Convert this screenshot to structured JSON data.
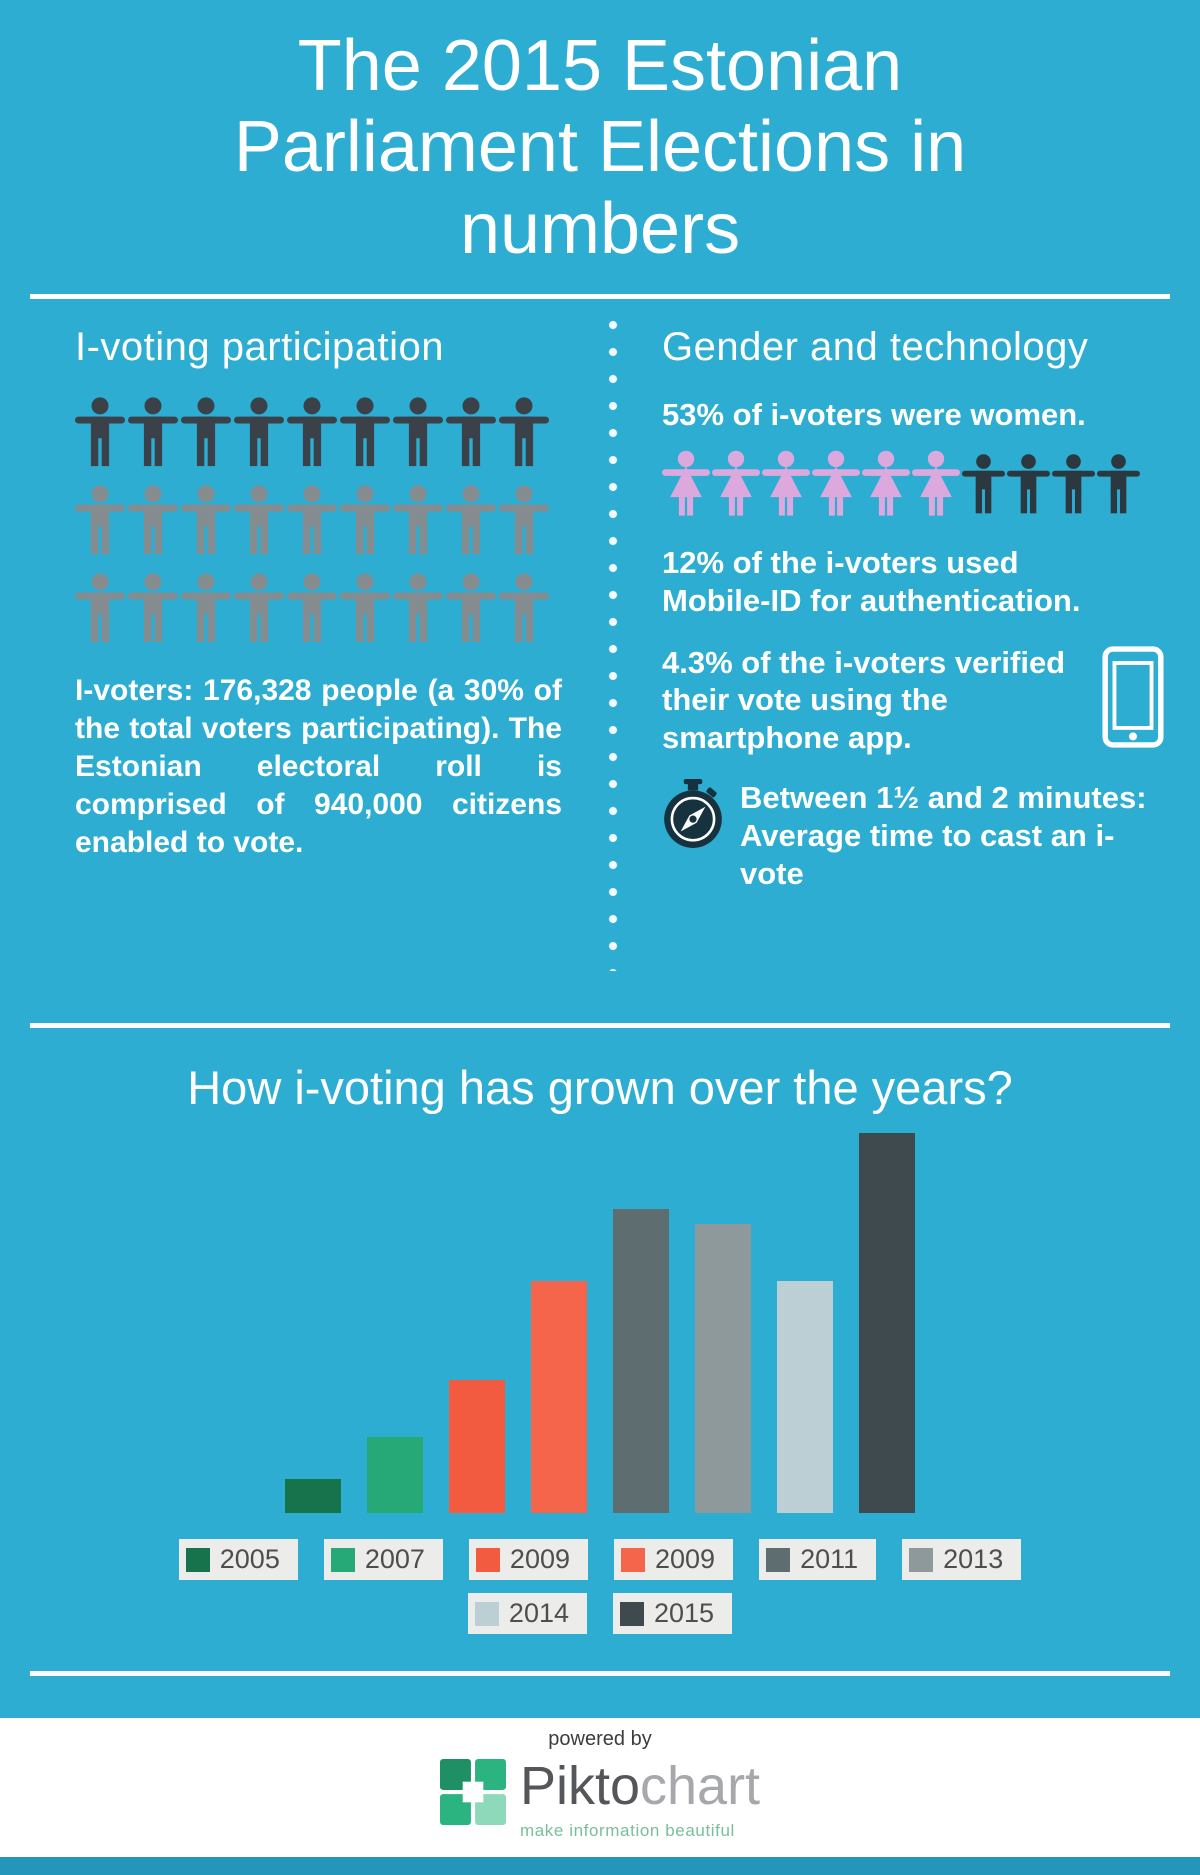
{
  "page": {
    "bg_color": "#2DADD2",
    "title_lines": [
      "The 2015 Estonian",
      "Parliament Elections in",
      "numbers"
    ]
  },
  "participation": {
    "heading": "I-voting participation",
    "people_rows": [
      {
        "count": 9,
        "color": "#3A4148"
      },
      {
        "count": 9,
        "color": "#858C90"
      },
      {
        "count": 9,
        "color": "#858C90"
      }
    ],
    "body_text": "I-voters: 176,328 people (a 30% of the total voters participating). The Estonian electoral roll is comprised of 940,000 citizens enabled to vote."
  },
  "gender_tech": {
    "heading": "Gender and technology",
    "women_stat": "53% of i-voters were women.",
    "icon_row": {
      "female_count": 6,
      "female_color": "#DCA9DE",
      "male_count": 4,
      "male_color": "#2C3840"
    },
    "mobile_stat": "12% of the i-voters used Mobile-ID for authentication.",
    "verify_stat": "4.3% of the i-voters verified their vote using the smartphone app.",
    "time_stat_line1": "Between 1½ and 2 minutes:",
    "time_stat_line2": "Average time to cast an i-vote"
  },
  "chart_data": {
    "type": "bar",
    "title": "How i-voting has grown over the years?",
    "categories": [
      "2005",
      "2007",
      "2009",
      "2009",
      "2011",
      "2013",
      "2014",
      "2015"
    ],
    "values": [
      9,
      20,
      35,
      61,
      80,
      76,
      61,
      100
    ],
    "values_note": "relative bar heights as percent of tallest bar; chart shows no numeric axis or data labels",
    "colors": [
      "#16734B",
      "#27A877",
      "#F25B40",
      "#F4654C",
      "#5E6E70",
      "#8E999B",
      "#BCCFD4",
      "#3E4A4E"
    ],
    "xlabel": "",
    "ylabel": "",
    "ylim": [
      0,
      100
    ],
    "grid": false,
    "legend_position": "below-two-rows",
    "legend_rows": [
      [
        0,
        1,
        2,
        3,
        4,
        5
      ],
      [
        6,
        7
      ]
    ]
  },
  "icons": {
    "person": "person-icon",
    "female_person": "female-person-icon",
    "male_person": "male-person-icon",
    "smartphone": "smartphone-icon",
    "stopwatch": "stopwatch-icon",
    "piktochart_logo": "piktochart-logo-icon"
  },
  "footer": {
    "powered_by": "powered by",
    "brand_bold": "Pikto",
    "brand_light": "chart",
    "tagline": "make information beautiful",
    "strip_color": "#2496BA",
    "brand_green": "#2BB380"
  }
}
